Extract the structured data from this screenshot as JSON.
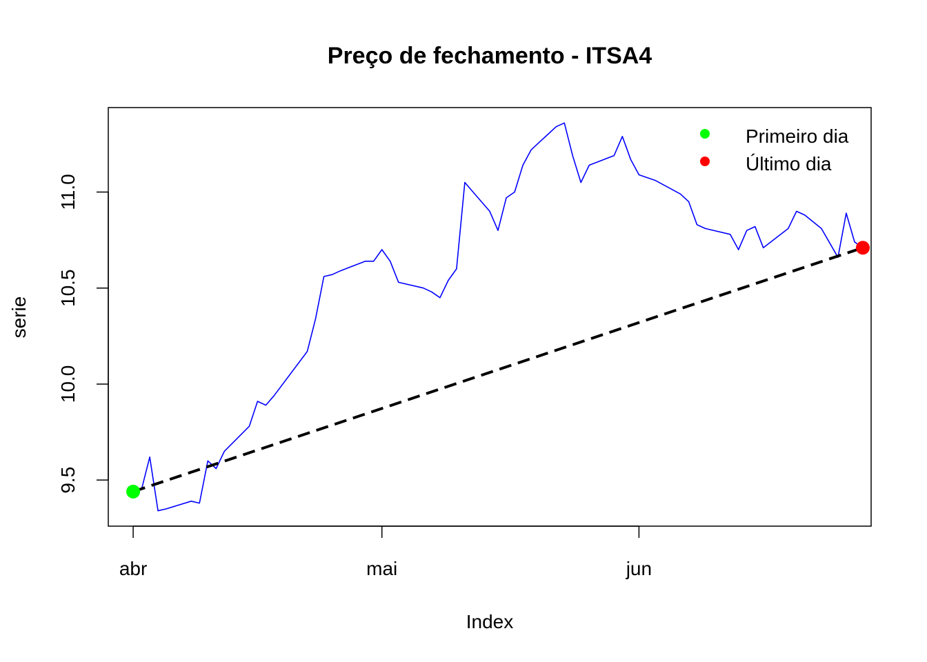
{
  "chart_data": {
    "type": "line",
    "title": "Preço de fechamento - ITSA4",
    "xlabel": "Index",
    "ylabel": "serie",
    "x_ticks": [
      {
        "label": "abr",
        "x": "2024-04-01"
      },
      {
        "label": "mai",
        "x": "2024-05-01"
      },
      {
        "label": "jun",
        "x": "2024-06-01"
      }
    ],
    "xlim": [
      "2024-03-29",
      "2024-06-29"
    ],
    "y_ticks": [
      9.5,
      10.0,
      10.5,
      11.0
    ],
    "ylim": [
      9.26,
      11.44
    ],
    "series": [
      {
        "color": "#0000ff",
        "points": [
          [
            "2024-04-01",
            9.44
          ],
          [
            "2024-04-02",
            9.45
          ],
          [
            "2024-04-03",
            9.62
          ],
          [
            "2024-04-04",
            9.34
          ],
          [
            "2024-04-05",
            9.35
          ],
          [
            "2024-04-08",
            9.39
          ],
          [
            "2024-04-09",
            9.38
          ],
          [
            "2024-04-10",
            9.6
          ],
          [
            "2024-04-11",
            9.56
          ],
          [
            "2024-04-12",
            9.65
          ],
          [
            "2024-04-15",
            9.78
          ],
          [
            "2024-04-16",
            9.91
          ],
          [
            "2024-04-17",
            9.89
          ],
          [
            "2024-04-18",
            9.94
          ],
          [
            "2024-04-22",
            10.17
          ],
          [
            "2024-04-23",
            10.34
          ],
          [
            "2024-04-24",
            10.56
          ],
          [
            "2024-04-25",
            10.57
          ],
          [
            "2024-04-26",
            10.59
          ],
          [
            "2024-04-29",
            10.64
          ],
          [
            "2024-04-30",
            10.64
          ],
          [
            "2024-05-01",
            10.7
          ],
          [
            "2024-05-02",
            10.64
          ],
          [
            "2024-05-03",
            10.53
          ],
          [
            "2024-05-06",
            10.5
          ],
          [
            "2024-05-07",
            10.48
          ],
          [
            "2024-05-08",
            10.45
          ],
          [
            "2024-05-09",
            10.54
          ],
          [
            "2024-05-10",
            10.6
          ],
          [
            "2024-05-11",
            11.05
          ],
          [
            "2024-05-14",
            10.9
          ],
          [
            "2024-05-15",
            10.8
          ],
          [
            "2024-05-16",
            10.97
          ],
          [
            "2024-05-17",
            11.0
          ],
          [
            "2024-05-18",
            11.14
          ],
          [
            "2024-05-19",
            11.22
          ],
          [
            "2024-05-20",
            11.26
          ],
          [
            "2024-05-21",
            11.3
          ],
          [
            "2024-05-22",
            11.34
          ],
          [
            "2024-05-23",
            11.36
          ],
          [
            "2024-05-24",
            11.19
          ],
          [
            "2024-05-25",
            11.05
          ],
          [
            "2024-05-26",
            11.14
          ],
          [
            "2024-05-29",
            11.19
          ],
          [
            "2024-05-30",
            11.29
          ],
          [
            "2024-05-31",
            11.17
          ],
          [
            "2024-06-01",
            11.09
          ],
          [
            "2024-06-03",
            11.06
          ],
          [
            "2024-06-06",
            10.99
          ],
          [
            "2024-06-07",
            10.95
          ],
          [
            "2024-06-08",
            10.83
          ],
          [
            "2024-06-09",
            10.81
          ],
          [
            "2024-06-12",
            10.78
          ],
          [
            "2024-06-13",
            10.7
          ],
          [
            "2024-06-14",
            10.8
          ],
          [
            "2024-06-15",
            10.82
          ],
          [
            "2024-06-16",
            10.71
          ],
          [
            "2024-06-19",
            10.81
          ],
          [
            "2024-06-20",
            10.9
          ],
          [
            "2024-06-21",
            10.88
          ],
          [
            "2024-06-23",
            10.81
          ],
          [
            "2024-06-25",
            10.66
          ],
          [
            "2024-06-26",
            10.89
          ],
          [
            "2024-06-27",
            10.74
          ],
          [
            "2024-06-28",
            10.71
          ]
        ]
      }
    ],
    "trend_line": {
      "color": "#000000",
      "style": "dashed",
      "from": [
        "2024-04-01",
        9.44
      ],
      "to": [
        "2024-06-28",
        10.71
      ]
    },
    "markers": [
      {
        "label": "Primeiro dia",
        "color": "#00ff00",
        "x": "2024-04-01",
        "y": 9.44
      },
      {
        "label": "Último dia",
        "color": "#ff0000",
        "x": "2024-06-28",
        "y": 10.71
      }
    ],
    "legend": {
      "placement": "top-right",
      "items": [
        {
          "label": "Primeiro dia",
          "color": "#00ff00"
        },
        {
          "label": "Último dia",
          "color": "#ff0000"
        }
      ]
    }
  }
}
